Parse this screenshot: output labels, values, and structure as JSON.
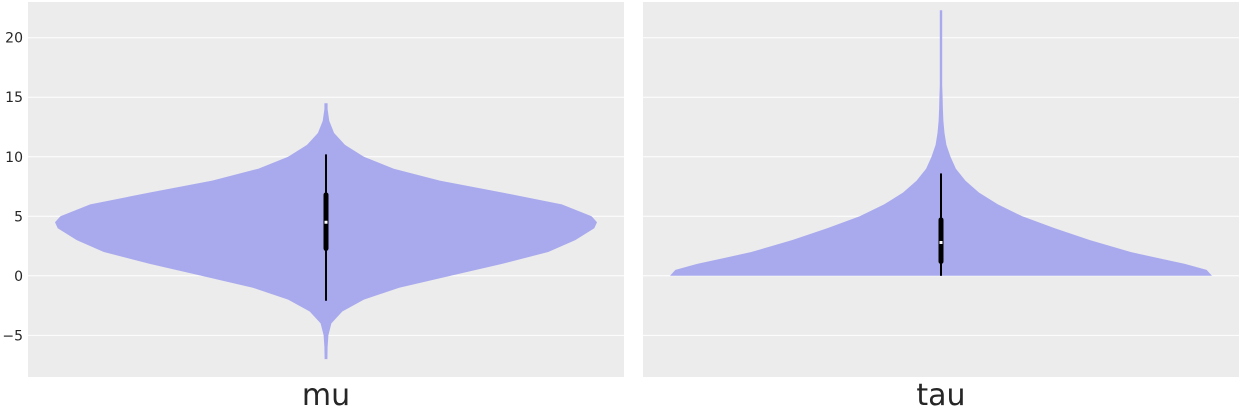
{
  "chart_data": {
    "type": "violin",
    "ylim": [
      -8.5,
      23
    ],
    "yticks": [
      -5,
      0,
      5,
      10,
      15,
      20
    ],
    "ytick_labels": [
      "−5",
      "0",
      "5",
      "10",
      "15",
      "20"
    ],
    "grid": true,
    "colors": {
      "background": "#ececec",
      "grid": "#ffffff",
      "violin_fill": "#a9aaee",
      "box": "#000000",
      "median": "#ffffff",
      "text": "#262626"
    },
    "panels": [
      {
        "label": "mu",
        "min": -7.0,
        "max": 14.5,
        "whisker_low": -2.1,
        "whisker_high": 10.2,
        "q1": 2.3,
        "q3": 6.8,
        "median": 4.5,
        "density_width": [
          [
            -7.0,
            0.005
          ],
          [
            -6.0,
            0.006
          ],
          [
            -5.0,
            0.009
          ],
          [
            -4.0,
            0.02
          ],
          [
            -3.0,
            0.06
          ],
          [
            -2.0,
            0.14
          ],
          [
            -1.0,
            0.27
          ],
          [
            0.0,
            0.46
          ],
          [
            1.0,
            0.65
          ],
          [
            2.0,
            0.82
          ],
          [
            3.0,
            0.92
          ],
          [
            4.0,
            0.99
          ],
          [
            4.5,
            1.0
          ],
          [
            5.0,
            0.98
          ],
          [
            6.0,
            0.87
          ],
          [
            7.0,
            0.65
          ],
          [
            8.0,
            0.42
          ],
          [
            9.0,
            0.25
          ],
          [
            10.0,
            0.14
          ],
          [
            11.0,
            0.07
          ],
          [
            12.0,
            0.03
          ],
          [
            13.0,
            0.012
          ],
          [
            14.0,
            0.006
          ],
          [
            14.5,
            0.006
          ]
        ]
      },
      {
        "label": "tau",
        "min": 0.0,
        "max": 22.3,
        "whisker_low": 0.0,
        "whisker_high": 8.6,
        "q1": 1.2,
        "q3": 4.7,
        "median": 2.8,
        "density_width": [
          [
            0.0,
            1.0
          ],
          [
            0.5,
            0.98
          ],
          [
            1.0,
            0.9
          ],
          [
            1.5,
            0.8
          ],
          [
            2.0,
            0.7
          ],
          [
            3.0,
            0.55
          ],
          [
            4.0,
            0.42
          ],
          [
            5.0,
            0.3
          ],
          [
            6.0,
            0.21
          ],
          [
            7.0,
            0.14
          ],
          [
            8.0,
            0.09
          ],
          [
            9.0,
            0.055
          ],
          [
            10.0,
            0.035
          ],
          [
            11.0,
            0.02
          ],
          [
            12.0,
            0.013
          ],
          [
            13.0,
            0.009
          ],
          [
            14.0,
            0.007
          ],
          [
            15.0,
            0.006
          ],
          [
            16.0,
            0.004
          ],
          [
            18.0,
            0.003
          ],
          [
            20.0,
            0.002
          ],
          [
            22.3,
            0.002
          ]
        ]
      }
    ]
  }
}
